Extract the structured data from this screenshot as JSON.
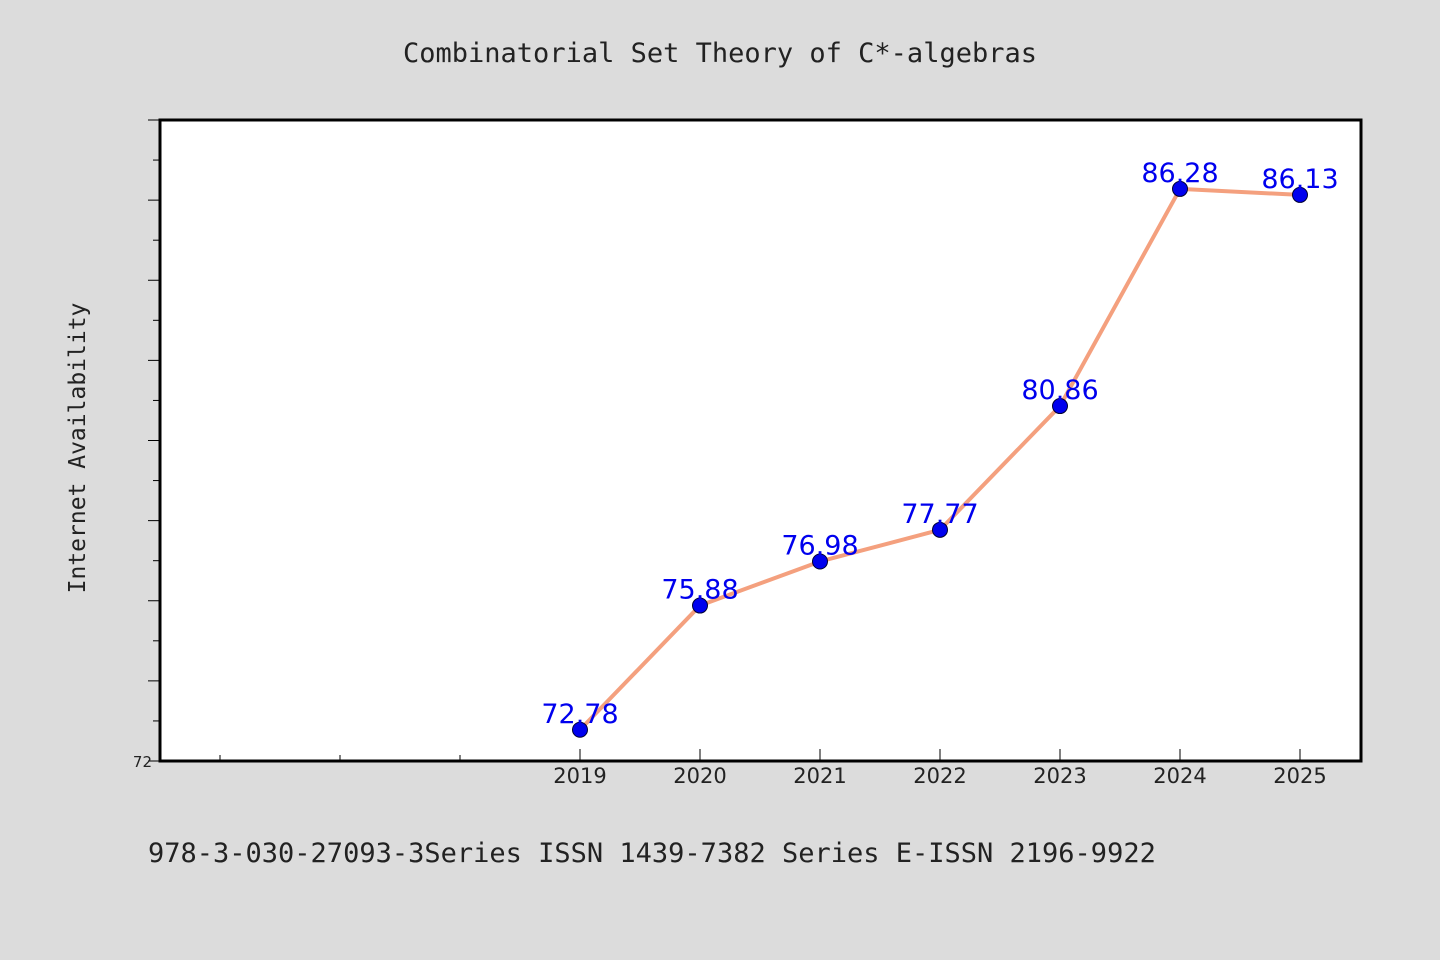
{
  "chart_data": {
    "type": "line",
    "title": "Combinatorial Set Theory of C*-algebras",
    "ylabel": "Internet Availability",
    "xlabel": "",
    "footer": "978-3-030-27093-3Series ISSN 1439-7382 Series E-ISSN 2196-9922",
    "categories": [
      "2019",
      "2020",
      "2021",
      "2022",
      "2023",
      "2024",
      "2025"
    ],
    "series": [
      {
        "values": [
          72.78,
          75.88,
          76.98,
          77.77,
          80.86,
          86.28,
          86.13
        ]
      }
    ],
    "data_labels": [
      "72.78",
      "75.88",
      "76.98",
      "77.77",
      "80.86",
      "86.28",
      "86.13"
    ],
    "y_tick_labels": [
      "72"
    ],
    "ylim": [
      72,
      88
    ],
    "grid": false,
    "colors": {
      "background": "#dcdcdc",
      "plot_background": "#ffffff",
      "line": "#f4a07e",
      "marker": "#0000ee",
      "data_label": "#0000ee",
      "text": "#222222",
      "axis": "#000000"
    }
  }
}
